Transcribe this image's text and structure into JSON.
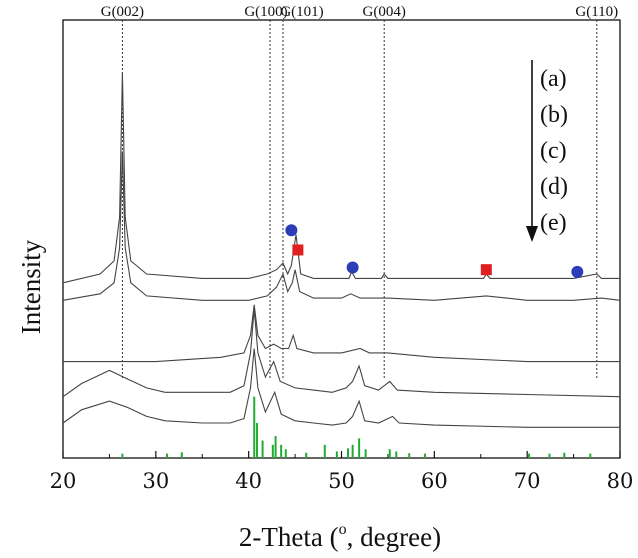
{
  "chart_data": {
    "type": "line",
    "xlabel": "2-Theta (o, degree)",
    "xlabel_parts": {
      "before": "2-Theta (",
      "superscript": "o",
      "after": ", degree)"
    },
    "ylabel": "Intensity",
    "xlim": [
      20,
      80
    ],
    "ylim": [
      0,
      100
    ],
    "x_ticks": [
      20,
      30,
      40,
      50,
      60,
      70,
      80
    ],
    "x_tick_labels": [
      "20",
      "30",
      "40",
      "50",
      "60",
      "70",
      "80"
    ],
    "grid": false,
    "reference_lines": [
      {
        "label": "G(002)",
        "x": 26.4
      },
      {
        "label": "G(100)",
        "x": 42.3
      },
      {
        "label": "G(101)",
        "x": 43.7
      },
      {
        "label": "G(004)",
        "x": 54.6
      },
      {
        "label": "G(110)",
        "x": 77.5
      }
    ],
    "legend": {
      "placement": "top-right",
      "labels": [
        "(a)",
        "(b)",
        "(c)",
        "(d)",
        "(e)"
      ],
      "arrow": "down"
    },
    "series": [
      {
        "label": "(a)",
        "points": [
          [
            20,
            40
          ],
          [
            24,
            42
          ],
          [
            25.5,
            45
          ],
          [
            26.1,
            55
          ],
          [
            26.4,
            88
          ],
          [
            26.7,
            55
          ],
          [
            27.3,
            45
          ],
          [
            29,
            42
          ],
          [
            35,
            41
          ],
          [
            40,
            41
          ],
          [
            42,
            42
          ],
          [
            43,
            43
          ],
          [
            43.7,
            44.5
          ],
          [
            44.2,
            42
          ],
          [
            44.6,
            44
          ],
          [
            45.1,
            51
          ],
          [
            45.6,
            42
          ],
          [
            47,
            41
          ],
          [
            50.8,
            41
          ],
          [
            51.1,
            42.5
          ],
          [
            51.5,
            41
          ],
          [
            54.3,
            41
          ],
          [
            54.6,
            42
          ],
          [
            55,
            41
          ],
          [
            60,
            41
          ],
          [
            65.3,
            41
          ],
          [
            65.6,
            42
          ],
          [
            66,
            41
          ],
          [
            70,
            41
          ],
          [
            75,
            41
          ],
          [
            77.5,
            42
          ],
          [
            78,
            41
          ],
          [
            80,
            41
          ]
        ]
      },
      {
        "label": "(b)",
        "points": [
          [
            20,
            36
          ],
          [
            24,
            37.5
          ],
          [
            25.5,
            40
          ],
          [
            26.1,
            48
          ],
          [
            26.4,
            70
          ],
          [
            26.7,
            48
          ],
          [
            27.3,
            40
          ],
          [
            29,
            37
          ],
          [
            35,
            36
          ],
          [
            40,
            36
          ],
          [
            42,
            37
          ],
          [
            43,
            39
          ],
          [
            43.7,
            42
          ],
          [
            44.2,
            38
          ],
          [
            44.7,
            40
          ],
          [
            45,
            43
          ],
          [
            45.5,
            38
          ],
          [
            47,
            36.5
          ],
          [
            50,
            36.5
          ],
          [
            51,
            37.5
          ],
          [
            52,
            36.5
          ],
          [
            55,
            36.5
          ],
          [
            60,
            36
          ],
          [
            65.6,
            37
          ],
          [
            70,
            36
          ],
          [
            75,
            36
          ],
          [
            78,
            36.5
          ],
          [
            80,
            36
          ]
        ]
      },
      {
        "label": "(c)",
        "points": [
          [
            20,
            22
          ],
          [
            30,
            22
          ],
          [
            37,
            23
          ],
          [
            39.5,
            24
          ],
          [
            40.2,
            28
          ],
          [
            40.6,
            35
          ],
          [
            41,
            28
          ],
          [
            41.8,
            25
          ],
          [
            42.7,
            26
          ],
          [
            43.5,
            25
          ],
          [
            44.3,
            25
          ],
          [
            44.8,
            28
          ],
          [
            45.2,
            25
          ],
          [
            47,
            24
          ],
          [
            50,
            24
          ],
          [
            52,
            25
          ],
          [
            53,
            24
          ],
          [
            55,
            24
          ],
          [
            60,
            23
          ],
          [
            70,
            22
          ],
          [
            80,
            22
          ]
        ]
      },
      {
        "label": "(d)",
        "points": [
          [
            20,
            14
          ],
          [
            22,
            17
          ],
          [
            25,
            20
          ],
          [
            27,
            18
          ],
          [
            29,
            16
          ],
          [
            31,
            15
          ],
          [
            35,
            15
          ],
          [
            38,
            15
          ],
          [
            39.5,
            16.5
          ],
          [
            40.2,
            24
          ],
          [
            40.6,
            34
          ],
          [
            41,
            24
          ],
          [
            41.8,
            18.5
          ],
          [
            42.7,
            22
          ],
          [
            43.4,
            17.5
          ],
          [
            45,
            16
          ],
          [
            47,
            15.5
          ],
          [
            49,
            15
          ],
          [
            50.5,
            16
          ],
          [
            51.2,
            17.5
          ],
          [
            51.9,
            21
          ],
          [
            52.5,
            16.5
          ],
          [
            54,
            15.5
          ],
          [
            55.2,
            17.5
          ],
          [
            56,
            15.5
          ],
          [
            60,
            15
          ],
          [
            70,
            14.5
          ],
          [
            80,
            14
          ]
        ]
      },
      {
        "label": "(e)",
        "points": [
          [
            20,
            8
          ],
          [
            22,
            11
          ],
          [
            25,
            13
          ],
          [
            27,
            11.5
          ],
          [
            29,
            9.5
          ],
          [
            31,
            8.5
          ],
          [
            35,
            8
          ],
          [
            38,
            8
          ],
          [
            39.5,
            9
          ],
          [
            40.2,
            16
          ],
          [
            40.6,
            25
          ],
          [
            41,
            16
          ],
          [
            41.8,
            10.5
          ],
          [
            42.8,
            15
          ],
          [
            43.5,
            10
          ],
          [
            45,
            8.5
          ],
          [
            47,
            8
          ],
          [
            49,
            7.5
          ],
          [
            50.5,
            8
          ],
          [
            51.2,
            9.5
          ],
          [
            51.9,
            13
          ],
          [
            52.5,
            8.5
          ],
          [
            54,
            8
          ],
          [
            55.5,
            9.5
          ],
          [
            56.2,
            8
          ],
          [
            60,
            7.5
          ],
          [
            70,
            7
          ],
          [
            80,
            7
          ]
        ]
      }
    ],
    "reference_pattern": {
      "color": "#22aa33",
      "sticks": [
        [
          26.4,
          1
        ],
        [
          31.2,
          1
        ],
        [
          32.8,
          1.3
        ],
        [
          40.6,
          14
        ],
        [
          40.9,
          8
        ],
        [
          41.5,
          4
        ],
        [
          42.6,
          3
        ],
        [
          42.9,
          5
        ],
        [
          43.5,
          3
        ],
        [
          44.0,
          2
        ],
        [
          46.2,
          1.2
        ],
        [
          48.2,
          3
        ],
        [
          49.5,
          1.5
        ],
        [
          50.7,
          2.2
        ],
        [
          51.2,
          3
        ],
        [
          51.9,
          4.5
        ],
        [
          52.6,
          2
        ],
        [
          55.2,
          2
        ],
        [
          55.9,
          1.5
        ],
        [
          57.3,
          1.1
        ],
        [
          59,
          1
        ],
        [
          70.2,
          1
        ],
        [
          72.4,
          1
        ],
        [
          74,
          1.2
        ],
        [
          76.8,
          1
        ]
      ]
    },
    "markers": [
      {
        "shape": "circle",
        "color": "#2b3db8",
        "x": 44.6,
        "y": 52
      },
      {
        "shape": "square",
        "color": "#e02020",
        "x": 45.3,
        "y": 47.5
      },
      {
        "shape": "circle",
        "color": "#2b3db8",
        "x": 51.2,
        "y": 43.5
      },
      {
        "shape": "square",
        "color": "#e02020",
        "x": 65.6,
        "y": 43
      },
      {
        "shape": "circle",
        "color": "#2b3db8",
        "x": 75.4,
        "y": 42.5
      }
    ]
  }
}
